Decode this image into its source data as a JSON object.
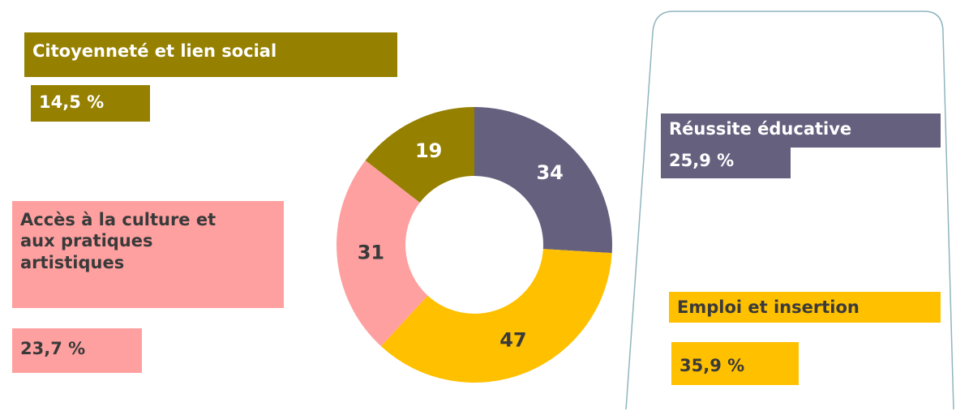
{
  "chart_data": {
    "type": "donut",
    "categories": [
      "Réussite éducative",
      "Emploi et insertion",
      "Accès à la culture et aux pratiques artistiques",
      "Citoyenneté et lien social"
    ],
    "values": [
      34,
      47,
      31,
      19
    ],
    "colors": [
      "#66607f",
      "#ffc000",
      "#ffa0a0",
      "#958000"
    ],
    "percentages": [
      25.9,
      35.9,
      23.7,
      14.5
    ],
    "percentage_labels": [
      "25,9 %",
      "35,9 %",
      "23,7 %",
      "14,5 %"
    ]
  }
}
